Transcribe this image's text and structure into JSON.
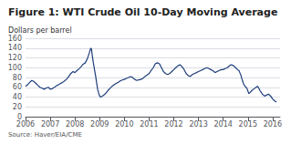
{
  "chart_data": {
    "type": "line",
    "title": "Figure 1: WTI Crude Oil 10-Day Moving Average",
    "ylabel": "Dollars per barrel",
    "annotations": [
      "Source: Haver/EIA/CME"
    ],
    "color": "#1f3d7a",
    "grid": true,
    "xlim": [
      2006.0,
      2016.3
    ],
    "xticks": [
      2006,
      2007,
      2008,
      2009,
      2010,
      2011,
      2012,
      2013,
      2014,
      2015,
      2016
    ],
    "ylim": [
      0,
      160
    ],
    "yticks": [
      0,
      20,
      40,
      60,
      80,
      100,
      120,
      140,
      160
    ],
    "x": [
      2006.0,
      2006.08,
      2006.17,
      2006.25,
      2006.33,
      2006.42,
      2006.5,
      2006.58,
      2006.67,
      2006.75,
      2006.83,
      2006.92,
      2007.0,
      2007.08,
      2007.17,
      2007.25,
      2007.33,
      2007.42,
      2007.5,
      2007.58,
      2007.67,
      2007.75,
      2007.83,
      2007.92,
      2008.0,
      2008.08,
      2008.17,
      2008.25,
      2008.33,
      2008.42,
      2008.5,
      2008.58,
      2008.64,
      2008.67,
      2008.7,
      2008.75,
      2008.83,
      2008.88,
      2008.92,
      2008.96,
      2009.0,
      2009.04,
      2009.08,
      2009.17,
      2009.25,
      2009.33,
      2009.42,
      2009.5,
      2009.58,
      2009.67,
      2009.75,
      2009.83,
      2009.92,
      2010.0,
      2010.08,
      2010.17,
      2010.25,
      2010.33,
      2010.42,
      2010.5,
      2010.58,
      2010.67,
      2010.75,
      2010.83,
      2010.92,
      2011.0,
      2011.08,
      2011.17,
      2011.25,
      2011.33,
      2011.42,
      2011.5,
      2011.58,
      2011.67,
      2011.75,
      2011.83,
      2011.92,
      2012.0,
      2012.08,
      2012.17,
      2012.25,
      2012.33,
      2012.42,
      2012.5,
      2012.58,
      2012.67,
      2012.75,
      2012.83,
      2012.92,
      2013.0,
      2013.08,
      2013.17,
      2013.25,
      2013.33,
      2013.42,
      2013.5,
      2013.58,
      2013.67,
      2013.75,
      2013.83,
      2013.92,
      2014.0,
      2014.08,
      2014.17,
      2014.25,
      2014.33,
      2014.42,
      2014.5,
      2014.58,
      2014.64,
      2014.67,
      2014.72,
      2014.75,
      2014.79,
      2014.83,
      2014.88,
      2014.92,
      2014.96,
      2015.0,
      2015.04,
      2015.08,
      2015.17,
      2015.25,
      2015.33,
      2015.38,
      2015.42,
      2015.5,
      2015.55,
      2015.58,
      2015.63,
      2015.67,
      2015.75,
      2015.83,
      2015.92,
      2016.0,
      2016.08,
      2016.15
    ],
    "values": [
      62,
      65,
      70,
      74,
      72,
      68,
      64,
      60,
      58,
      56,
      58,
      60,
      56,
      57,
      60,
      63,
      65,
      68,
      70,
      73,
      77,
      82,
      88,
      92,
      90,
      94,
      98,
      102,
      107,
      110,
      118,
      130,
      140,
      138,
      125,
      108,
      85,
      68,
      55,
      48,
      42,
      40,
      41,
      44,
      48,
      53,
      58,
      62,
      65,
      68,
      70,
      73,
      75,
      76,
      78,
      80,
      82,
      80,
      76,
      74,
      75,
      76,
      78,
      82,
      85,
      88,
      94,
      100,
      108,
      110,
      108,
      100,
      92,
      88,
      86,
      88,
      92,
      96,
      100,
      104,
      106,
      102,
      96,
      88,
      84,
      82,
      86,
      88,
      90,
      92,
      94,
      96,
      98,
      100,
      98,
      96,
      94,
      90,
      92,
      94,
      96,
      96,
      98,
      100,
      104,
      106,
      104,
      100,
      96,
      94,
      90,
      84,
      78,
      72,
      66,
      62,
      60,
      58,
      52,
      47,
      49,
      54,
      57,
      60,
      62,
      60,
      52,
      49,
      46,
      44,
      42,
      44,
      46,
      42,
      36,
      32,
      30
    ]
  }
}
